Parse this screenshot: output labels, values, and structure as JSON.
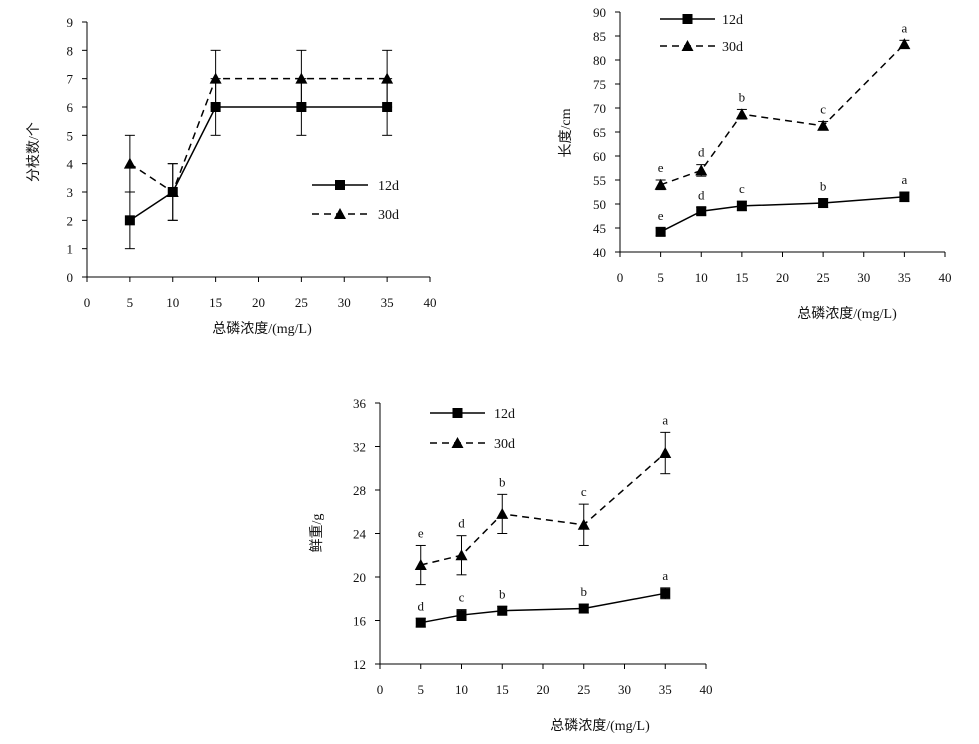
{
  "chart_data": [
    {
      "type": "line",
      "title": "",
      "xlabel": "总磷浓度/(mg/L)",
      "ylabel": "分枝数/个",
      "xlim": [
        0,
        40
      ],
      "ylim": [
        0,
        9
      ],
      "x_ticks": [
        0,
        5,
        10,
        15,
        20,
        25,
        30,
        35,
        40
      ],
      "y_ticks": [
        0,
        1,
        2,
        3,
        4,
        5,
        6,
        7,
        8,
        9
      ],
      "legend_position": "center-right",
      "x": [
        5,
        10,
        15,
        25,
        35
      ],
      "series": [
        {
          "name": "12d",
          "line_style": "solid",
          "marker": "square",
          "values": [
            2,
            3,
            6,
            6,
            6
          ],
          "error": [
            1,
            1,
            1,
            1,
            1
          ],
          "labels": []
        },
        {
          "name": "30d",
          "line_style": "dashed",
          "marker": "triangle",
          "values": [
            4,
            3,
            7,
            7,
            7
          ],
          "error": [
            1,
            1,
            1,
            1,
            1
          ],
          "labels": []
        }
      ]
    },
    {
      "type": "line",
      "title": "",
      "xlabel": "总磷浓度/(mg/L)",
      "ylabel": "长度/cm",
      "xlim": [
        0,
        40
      ],
      "ylim": [
        40,
        90
      ],
      "x_ticks": [
        0,
        5,
        10,
        15,
        20,
        25,
        30,
        35,
        40
      ],
      "y_ticks": [
        40,
        45,
        50,
        55,
        60,
        65,
        70,
        75,
        80,
        85,
        90
      ],
      "legend_position": "top-left",
      "x": [
        5,
        10,
        15,
        25,
        35
      ],
      "series": [
        {
          "name": "12d",
          "line_style": "solid",
          "marker": "square",
          "values": [
            44.2,
            48.5,
            49.6,
            50.2,
            51.5
          ],
          "error": [
            0.8,
            0.8,
            1.0,
            0.9,
            1.0
          ],
          "labels": [
            "e",
            "d",
            "c",
            "b",
            "a"
          ]
        },
        {
          "name": "30d",
          "line_style": "dashed",
          "marker": "triangle",
          "values": [
            54.0,
            57.0,
            68.7,
            66.3,
            83.3
          ],
          "error": [
            1.0,
            1.2,
            1.0,
            0.9,
            0.8
          ],
          "labels": [
            "e",
            "d",
            "b",
            "c",
            "a"
          ]
        }
      ]
    },
    {
      "type": "line",
      "title": "",
      "xlabel": "总磷浓度/(mg/L)",
      "ylabel": "鲜重/g",
      "xlim": [
        0,
        40
      ],
      "ylim": [
        12,
        36
      ],
      "x_ticks": [
        0,
        5,
        10,
        15,
        20,
        25,
        30,
        35,
        40
      ],
      "y_ticks": [
        12,
        16,
        20,
        24,
        28,
        32,
        36
      ],
      "legend_position": "top-left",
      "x": [
        5,
        10,
        15,
        25,
        35
      ],
      "series": [
        {
          "name": "12d",
          "line_style": "solid",
          "marker": "square",
          "values": [
            15.8,
            16.5,
            16.9,
            17.1,
            18.5
          ],
          "error": [
            0.4,
            0.5,
            0.4,
            0.4,
            0.5
          ],
          "labels": [
            "d",
            "c",
            "b",
            "b",
            "a"
          ]
        },
        {
          "name": "30d",
          "line_style": "dashed",
          "marker": "triangle",
          "values": [
            21.1,
            22.0,
            25.8,
            24.8,
            31.4
          ],
          "error": [
            1.8,
            1.8,
            1.8,
            1.9,
            1.9
          ],
          "labels": [
            "e",
            "d",
            "b",
            "c",
            "a"
          ]
        }
      ]
    }
  ]
}
